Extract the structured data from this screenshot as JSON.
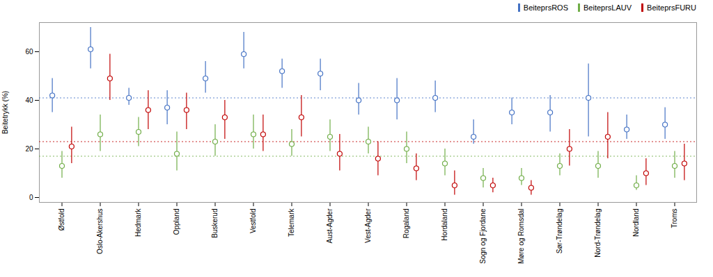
{
  "chart_data": {
    "type": "errorbar",
    "ylabel": "Beitetrykk (%)",
    "categories": [
      "Østfold",
      "Oslo-Akershus",
      "Hedmark",
      "Oppland",
      "Buskerud",
      "Vestfold",
      "Telemark",
      "Aust-Agder",
      "Vest-Agder",
      "Rogaland",
      "Hordaland",
      "Sogn og Fjordane",
      "Møre og Romsdal",
      "Sør-Trøndelag",
      "Nord-Trøndelag",
      "Nordland",
      "Troms"
    ],
    "series": [
      {
        "name": "BeiteprsROS",
        "color": "#4472C4",
        "marker": "circle",
        "values": [
          42,
          61,
          41,
          37,
          49,
          59,
          52,
          51,
          40,
          40,
          41,
          25,
          35,
          35,
          41,
          28,
          30
        ],
        "ci_low": [
          35,
          53,
          38,
          30,
          43,
          53,
          45,
          44,
          34,
          32,
          35,
          22,
          30,
          27,
          25,
          24,
          24
        ],
        "ci_high": [
          49,
          70,
          45,
          44,
          56,
          68,
          57,
          57,
          47,
          49,
          48,
          32,
          41,
          42,
          55,
          34,
          37
        ],
        "reference_line": 41
      },
      {
        "name": "BeiteprsLAUV",
        "color": "#70AD47",
        "marker": "circle",
        "values": [
          13,
          26,
          27,
          18,
          23,
          26,
          22,
          25,
          23,
          20,
          14,
          8,
          8,
          13,
          13,
          5,
          13
        ],
        "ci_low": [
          8,
          19,
          21,
          11,
          17,
          20,
          17,
          19,
          18,
          14,
          9,
          4,
          5,
          9,
          8,
          3,
          8
        ],
        "ci_high": [
          19,
          34,
          33,
          27,
          30,
          34,
          28,
          32,
          29,
          27,
          20,
          12,
          12,
          18,
          19,
          9,
          19
        ],
        "reference_line": 17
      },
      {
        "name": "BeiteprsFURU",
        "color": "#C00000",
        "marker": "circle",
        "values": [
          21,
          49,
          36,
          36,
          33,
          26,
          33,
          18,
          16,
          12,
          5,
          5,
          4,
          20,
          25,
          10,
          14
        ],
        "ci_low": [
          14,
          40,
          28,
          28,
          24,
          19,
          25,
          11,
          9,
          7,
          1,
          2,
          1,
          13,
          16,
          5,
          7
        ],
        "ci_high": [
          29,
          59,
          44,
          43,
          40,
          34,
          42,
          26,
          23,
          18,
          11,
          8,
          7,
          28,
          35,
          16,
          22
        ],
        "reference_line": 23
      }
    ],
    "ylim": [
      -2,
      72
    ],
    "yticks": [
      0,
      20,
      40,
      60
    ],
    "grid": false,
    "legend": "upper right"
  }
}
